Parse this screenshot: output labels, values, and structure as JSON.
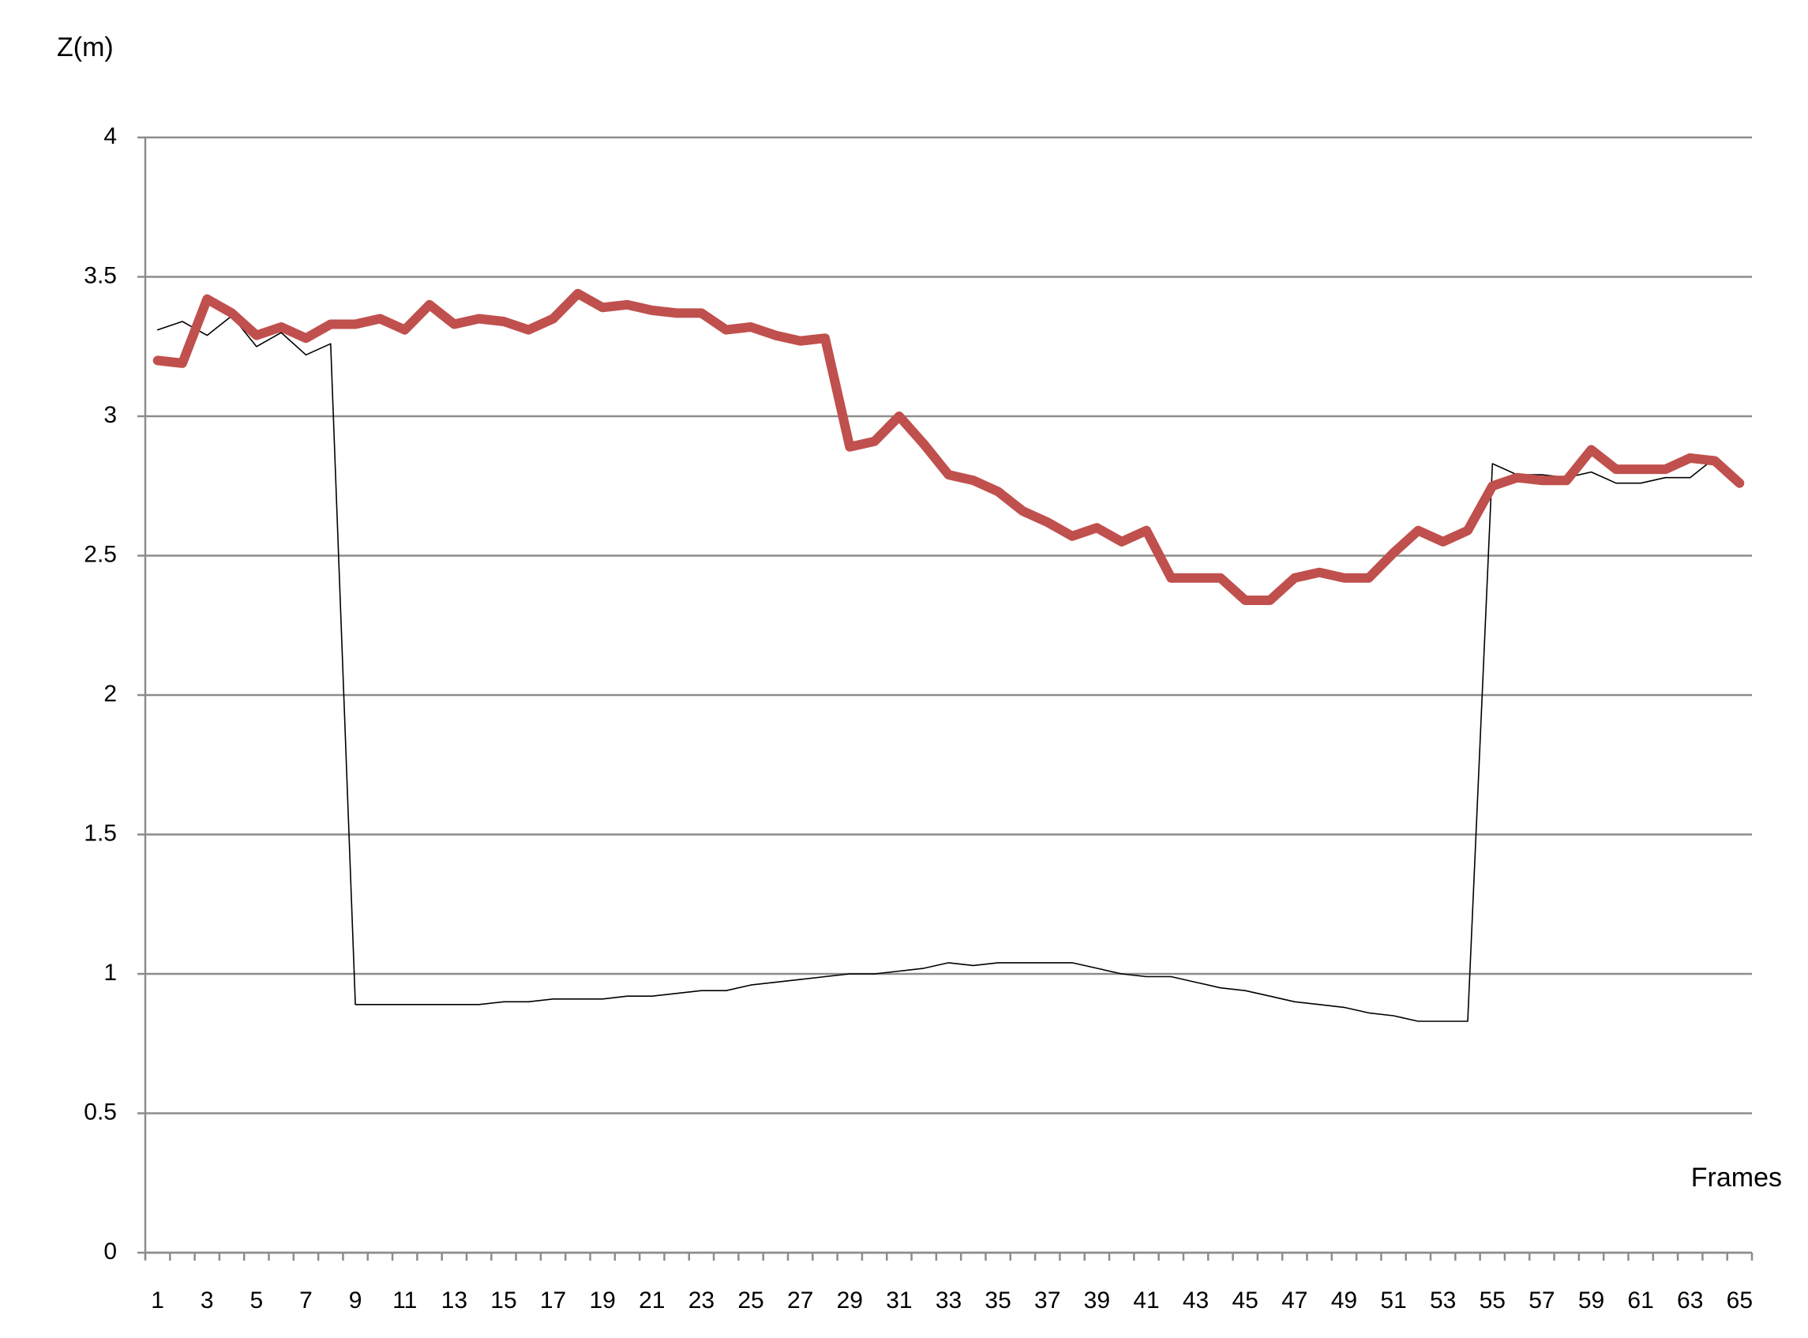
{
  "chart_data": {
    "type": "line",
    "y_label": "Z(m)",
    "x_label": "Frames",
    "categories": [
      "1",
      null,
      "3",
      null,
      "5",
      null,
      "7",
      null,
      "9",
      null,
      "11",
      null,
      "13",
      null,
      "15",
      null,
      "17",
      null,
      "19",
      null,
      "21",
      null,
      "23",
      null,
      "25",
      null,
      "27",
      null,
      "29",
      null,
      "31",
      null,
      "33",
      null,
      "35",
      null,
      "37",
      null,
      "39",
      null,
      "41",
      null,
      "43",
      null,
      "45",
      null,
      "47",
      null,
      "49",
      null,
      "51",
      null,
      "53",
      null,
      "55",
      null,
      "57",
      null,
      "59",
      null,
      "61",
      null,
      "63",
      null,
      "65"
    ],
    "series": [
      {
        "color": "#000000",
        "width": "thin",
        "values": [
          3.31,
          3.34,
          3.29,
          3.36,
          3.25,
          3.3,
          3.22,
          3.26,
          0.89,
          0.89,
          0.89,
          0.89,
          0.89,
          0.89,
          0.9,
          0.9,
          0.91,
          0.91,
          0.91,
          0.92,
          0.92,
          0.93,
          0.94,
          0.94,
          0.96,
          0.97,
          0.98,
          0.99,
          1.0,
          1.0,
          1.01,
          1.02,
          1.04,
          1.03,
          1.04,
          1.04,
          1.04,
          1.04,
          1.02,
          1.0,
          0.99,
          0.99,
          0.97,
          0.95,
          0.94,
          0.92,
          0.9,
          0.89,
          0.88,
          0.86,
          0.85,
          0.83,
          0.83,
          0.83,
          2.83,
          2.79,
          2.79,
          2.78,
          2.8,
          2.76,
          2.76,
          2.78,
          2.78,
          2.85,
          2.76
        ]
      },
      {
        "color": "#c0504d",
        "width": "thick",
        "values": [
          3.2,
          3.19,
          3.42,
          3.37,
          3.29,
          3.32,
          3.28,
          3.33,
          3.33,
          3.35,
          3.31,
          3.4,
          3.33,
          3.35,
          3.34,
          3.31,
          3.35,
          3.44,
          3.39,
          3.4,
          3.38,
          3.37,
          3.37,
          3.31,
          3.32,
          3.29,
          3.27,
          3.28,
          2.89,
          2.91,
          3.0,
          2.9,
          2.79,
          2.77,
          2.73,
          2.66,
          2.62,
          2.57,
          2.6,
          2.55,
          2.59,
          2.42,
          2.42,
          2.42,
          2.34,
          2.34,
          2.42,
          2.44,
          2.42,
          2.42,
          2.51,
          2.59,
          2.55,
          2.59,
          2.75,
          2.78,
          2.77,
          2.77,
          2.88,
          2.81,
          2.81,
          2.81,
          2.85,
          2.84,
          2.76
        ]
      }
    ],
    "ylim": [
      0,
      4
    ],
    "yticks": [
      0,
      0.5,
      1,
      1.5,
      2,
      2.5,
      3,
      3.5,
      4
    ],
    "grid": true
  }
}
